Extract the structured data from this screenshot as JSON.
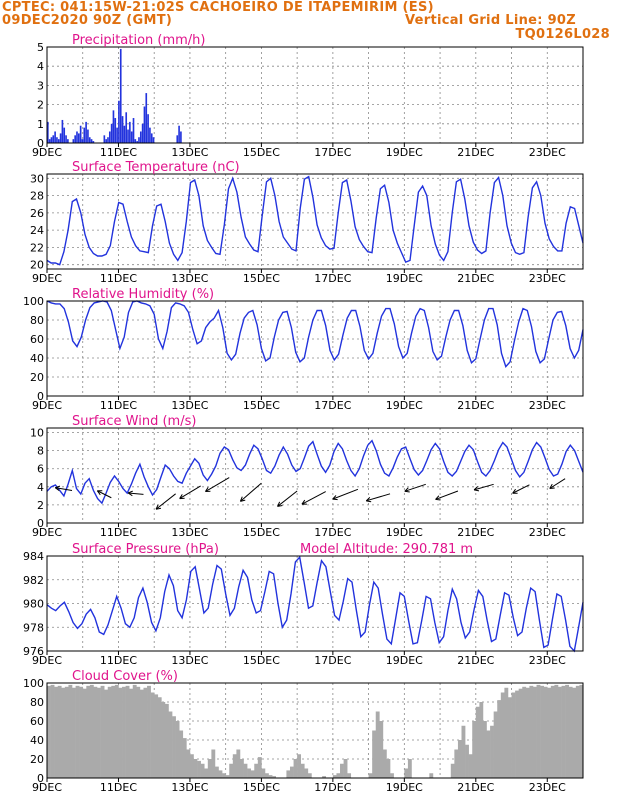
{
  "header": {
    "line1": "CPTEC:   041:15W-21:02S   CACHOEIRO DE ITAPEMIRIM (ES)",
    "line2": "09DEC2020 90Z (GMT)",
    "vgrid": "Vertical Grid Line: 90Z",
    "code": "TQ0126L028"
  },
  "colors": {
    "header": "#e07010",
    "title": "#e0148c",
    "line": "#2233dd",
    "bars": "#2233dd",
    "cloud": "#aaaaaa",
    "grid": "#888888"
  },
  "x_ticks": [
    "9DEC",
    "11DEC",
    "13DEC",
    "15DEC",
    "17DEC",
    "19DEC",
    "21DEC",
    "23DEC"
  ],
  "chart_data": [
    {
      "type": "bar",
      "title": "Precipitation (mm/h)",
      "ylim": [
        0,
        5
      ],
      "yticks": [
        "0",
        "1",
        "2",
        "3",
        "4",
        "5"
      ],
      "grid": true,
      "series": [
        {
          "values": [
            1.1,
            0.2,
            0.3,
            0.4,
            0.6,
            0.3,
            0.2,
            0.5,
            1.2,
            0.8,
            0.4,
            0.2,
            0,
            0,
            0.2,
            0.4,
            0.6,
            0.5,
            0.9,
            0.2,
            0.8,
            1.1,
            0.7,
            0.3,
            0.2,
            0.1,
            0,
            0,
            0,
            0,
            0,
            0.4,
            0.2,
            0.3,
            0.6,
            1.0,
            1.7,
            1.3,
            0.8,
            2.2,
            4.9,
            1.4,
            0.9,
            1.6,
            0.7,
            1.1,
            0.6,
            1.3,
            0.2,
            0.1,
            0.3,
            0.6,
            1.0,
            1.9,
            2.6,
            1.5,
            0.8,
            0.5,
            0.3,
            0,
            0,
            0,
            0,
            0,
            0,
            0,
            0,
            0,
            0,
            0,
            0,
            0.4,
            0.9,
            0.6,
            0,
            0,
            0,
            0,
            0,
            0,
            0,
            0,
            0,
            0,
            0,
            0,
            0,
            0,
            0,
            0,
            0,
            0,
            0,
            0,
            0,
            0,
            0,
            0,
            0,
            0,
            0,
            0,
            0,
            0,
            0,
            0,
            0,
            0,
            0,
            0,
            0,
            0,
            0,
            0,
            0,
            0,
            0,
            0,
            0,
            0,
            0,
            0,
            0,
            0,
            0,
            0,
            0,
            0,
            0,
            0,
            0,
            0,
            0,
            0,
            0,
            0,
            0,
            0,
            0,
            0,
            0,
            0,
            0,
            0,
            0,
            0,
            0,
            0,
            0,
            0,
            0,
            0,
            0,
            0,
            0,
            0,
            0,
            0,
            0,
            0,
            0,
            0,
            0,
            0,
            0,
            0,
            0,
            0,
            0,
            0,
            0,
            0,
            0,
            0,
            0,
            0,
            0,
            0,
            0,
            0,
            0,
            0,
            0,
            0,
            0,
            0,
            0,
            0,
            0,
            0,
            0,
            0,
            0,
            0,
            0,
            0,
            0,
            0,
            0,
            0,
            0,
            0,
            0,
            0,
            0,
            0,
            0,
            0,
            0,
            0,
            0,
            0,
            0,
            0,
            0,
            0,
            0,
            0,
            0,
            0,
            0,
            0,
            0,
            0,
            0,
            0,
            0,
            0,
            0,
            0,
            0,
            0,
            0,
            0,
            0,
            0,
            0,
            0,
            0,
            0,
            0,
            0,
            0,
            0,
            0,
            0,
            0,
            0,
            0,
            0,
            0,
            0,
            0,
            0,
            0,
            0,
            0,
            0,
            0,
            0,
            0,
            0,
            0,
            0,
            0,
            0,
            0,
            0,
            0,
            0,
            0,
            0,
            0,
            0,
            0,
            0,
            0,
            0,
            0,
            0,
            0,
            0,
            0,
            0,
            0,
            0,
            0,
            0,
            0,
            0,
            0,
            0,
            0,
            0
          ]
        }
      ]
    },
    {
      "type": "line",
      "title": "Surface Temperature (nC)",
      "ylim": [
        19.5,
        30.5
      ],
      "yticks": [
        "20",
        "22",
        "24",
        "26",
        "28",
        "30"
      ],
      "grid": true,
      "series": [
        {
          "values": [
            20.5,
            20.2,
            20.2,
            20.0,
            21.5,
            24,
            27.3,
            27.6,
            26,
            23.5,
            22,
            21.3,
            21,
            21,
            21.2,
            22.2,
            25,
            27.2,
            27,
            25,
            23.2,
            22.2,
            21.6,
            21.5,
            21.4,
            24.5,
            26.8,
            27,
            25,
            22.5,
            21.2,
            20.5,
            21.4,
            25,
            29.5,
            29.8,
            28,
            24.5,
            22.8,
            22,
            21.3,
            21.2,
            24.6,
            28.8,
            30,
            28.4,
            25.5,
            23.2,
            22.4,
            21.7,
            21.5,
            25.7,
            29.6,
            30,
            28,
            25,
            23.2,
            22.5,
            21.8,
            21.6,
            26.5,
            29.9,
            30.2,
            27.8,
            24.6,
            23.1,
            22.2,
            21.8,
            21.9,
            26,
            29.5,
            29.8,
            27.4,
            24.4,
            22.9,
            22.1,
            21.5,
            21.4,
            25.4,
            28.8,
            29.2,
            27.2,
            24,
            22.5,
            21.4,
            20.3,
            20.5,
            24.5,
            28.4,
            29.1,
            28,
            24.5,
            22.4,
            21.1,
            20.5,
            21.5,
            26,
            29.6,
            29.9,
            27.6,
            24.5,
            22.6,
            21.7,
            21.3,
            21.6,
            26,
            29.5,
            30.1,
            28,
            24.5,
            22.5,
            21.4,
            21.2,
            21.4,
            25.5,
            28.9,
            29.6,
            28,
            24.8,
            23,
            22.1,
            21.6,
            21.6,
            24.8,
            26.7,
            26.5,
            24.5,
            22.5
          ]
        }
      ]
    },
    {
      "type": "line",
      "title": "Relative Humidity (%)",
      "ylim": [
        0,
        100
      ],
      "yticks": [
        "0",
        "20",
        "40",
        "60",
        "80",
        "100"
      ],
      "grid": true,
      "series": [
        {
          "values": [
            100,
            98,
            97,
            97,
            92,
            78,
            58,
            52,
            62,
            80,
            93,
            98,
            99,
            100,
            99,
            90,
            70,
            50,
            62,
            88,
            99,
            100,
            98,
            97,
            95,
            86,
            60,
            50,
            68,
            93,
            98,
            97,
            95,
            88,
            70,
            55,
            58,
            72,
            78,
            82,
            90,
            72,
            45,
            38,
            44,
            66,
            82,
            88,
            90,
            75,
            50,
            37,
            40,
            62,
            80,
            88,
            89,
            72,
            46,
            36,
            40,
            62,
            80,
            90,
            90,
            74,
            48,
            38,
            44,
            64,
            82,
            90,
            90,
            73,
            48,
            39,
            45,
            66,
            84,
            92,
            92,
            76,
            52,
            40,
            45,
            66,
            84,
            92,
            90,
            72,
            47,
            38,
            42,
            62,
            80,
            90,
            90,
            74,
            48,
            35,
            39,
            60,
            80,
            92,
            92,
            75,
            45,
            31,
            36,
            58,
            78,
            92,
            90,
            73,
            47,
            35,
            39,
            60,
            80,
            88,
            89,
            74,
            50,
            40,
            48,
            70
          ]
        }
      ]
    },
    {
      "type": "line",
      "title": "Surface Wind (m/s)",
      "ylim": [
        0,
        10.5
      ],
      "yticks": [
        "0",
        "2",
        "4",
        "6",
        "8",
        "10"
      ],
      "grid": true,
      "series": [
        {
          "values": [
            3.5,
            4.0,
            4.2,
            3.6,
            3.0,
            4.3,
            5.8,
            3.8,
            3.2,
            4.4,
            4.9,
            3.6,
            2.7,
            2.2,
            3.3,
            4.5,
            5.2,
            4.6,
            3.8,
            3.3,
            4.3,
            5.5,
            6.5,
            5.1,
            4.0,
            3.1,
            3.7,
            5.1,
            6.4,
            6.0,
            5.2,
            4.6,
            4.4,
            5.5,
            6.3,
            7.1,
            6.6,
            5.3,
            4.7,
            5.4,
            6.3,
            7.7,
            8.4,
            8.1,
            7.0,
            6.1,
            5.8,
            6.4,
            7.6,
            8.6,
            8.2,
            7.1,
            5.8,
            5.5,
            6.3,
            7.5,
            8.4,
            7.6,
            6.4,
            5.7,
            6.0,
            7.2,
            8.5,
            9.0,
            7.6,
            6.3,
            5.6,
            6.4,
            7.9,
            8.8,
            8.2,
            6.9,
            5.8,
            5.2,
            6.0,
            7.4,
            8.6,
            9.1,
            8.0,
            6.5,
            5.5,
            5.2,
            6.1,
            7.3,
            8.2,
            8.4,
            7.1,
            5.9,
            5.3,
            5.8,
            6.9,
            8.1,
            8.8,
            8.2,
            6.8,
            5.6,
            5.2,
            5.7,
            6.8,
            7.9,
            8.6,
            8.1,
            6.8,
            5.6,
            5.2,
            5.8,
            6.9,
            8.1,
            8.9,
            8.4,
            7.1,
            5.8,
            5.1,
            5.6,
            6.8,
            8.1,
            8.9,
            8.4,
            7.2,
            5.9,
            5.2,
            5.4,
            6.5,
            7.9,
            8.6,
            8.0,
            6.8,
            5.6
          ]
        }
      ],
      "wind_vectors": [
        {
          "day": 0.7,
          "u": -0.6,
          "v": 0.1
        },
        {
          "day": 1.8,
          "u": -0.5,
          "v": 0.25
        },
        {
          "day": 2.7,
          "u": -0.55,
          "v": 0.05
        },
        {
          "day": 3.6,
          "u": -0.7,
          "v": -0.55
        },
        {
          "day": 4.3,
          "u": -0.75,
          "v": -0.45
        },
        {
          "day": 5.1,
          "u": -0.85,
          "v": -0.5
        },
        {
          "day": 6.0,
          "u": -0.75,
          "v": -0.65
        },
        {
          "day": 7.0,
          "u": -0.7,
          "v": -0.55
        },
        {
          "day": 7.8,
          "u": -0.85,
          "v": -0.45
        },
        {
          "day": 8.7,
          "u": -0.9,
          "v": -0.35
        },
        {
          "day": 9.6,
          "u": -0.85,
          "v": -0.25
        },
        {
          "day": 10.6,
          "u": -0.75,
          "v": -0.25
        },
        {
          "day": 11.5,
          "u": -0.8,
          "v": -0.3
        },
        {
          "day": 12.5,
          "u": -0.7,
          "v": -0.2
        },
        {
          "day": 13.5,
          "u": -0.6,
          "v": -0.3
        },
        {
          "day": 14.5,
          "u": -0.55,
          "v": -0.35
        }
      ]
    },
    {
      "type": "line",
      "title": "Surface Pressure (hPa)",
      "annotation": "Model Altitude: 290.781  m",
      "ylim": [
        976,
        984
      ],
      "yticks": [
        "976",
        "978",
        "980",
        "982",
        "984"
      ],
      "grid": true,
      "series": [
        {
          "values": [
            979.9,
            979.6,
            979.4,
            979.8,
            980.1,
            979.3,
            978.4,
            977.9,
            978.3,
            979.1,
            979.5,
            978.8,
            977.6,
            977.4,
            978.2,
            979.4,
            980.6,
            979.6,
            978.3,
            978.0,
            978.8,
            980.5,
            981.3,
            980.1,
            978.4,
            977.7,
            978.8,
            981.0,
            982.4,
            981.5,
            979.4,
            978.8,
            980.3,
            982.7,
            983.1,
            981.2,
            979.2,
            979.6,
            981.6,
            983.2,
            982.9,
            980.8,
            979.0,
            979.6,
            981.4,
            982.8,
            982.2,
            980.3,
            979.2,
            979.4,
            981.0,
            982.7,
            982.5,
            980.0,
            978.0,
            978.6,
            980.8,
            983.5,
            983.9,
            981.8,
            979.6,
            979.8,
            981.8,
            983.6,
            983.1,
            981.0,
            979.0,
            978.6,
            980.2,
            982.1,
            981.8,
            979.4,
            977.2,
            977.6,
            979.9,
            981.8,
            981.3,
            979.1,
            977.0,
            976.6,
            978.7,
            980.9,
            980.6,
            978.5,
            976.6,
            976.7,
            978.6,
            980.6,
            980.4,
            978.4,
            976.7,
            977.2,
            979.4,
            981.2,
            980.4,
            978.4,
            977.1,
            977.6,
            979.5,
            981.1,
            980.6,
            978.6,
            976.8,
            977.0,
            979.0,
            980.9,
            980.7,
            978.8,
            977.3,
            977.6,
            979.6,
            981.3,
            981.0,
            978.6,
            976.3,
            976.5,
            978.7,
            980.8,
            980.6,
            978.6,
            976.4,
            975.9,
            978.0,
            980.1
          ]
        }
      ]
    },
    {
      "type": "area",
      "title": "Cloud Cover (%)",
      "ylim": [
        0,
        100
      ],
      "yticks": [
        "0",
        "20",
        "40",
        "60",
        "80",
        "100"
      ],
      "grid": true,
      "series": [
        {
          "values": [
            97,
            98,
            96,
            97,
            95,
            96,
            98,
            95,
            97,
            96,
            94,
            97,
            98,
            96,
            95,
            97,
            93,
            96,
            97,
            98,
            95,
            96,
            97,
            94,
            98,
            96,
            93,
            95,
            97,
            90,
            88,
            85,
            80,
            78,
            70,
            65,
            60,
            50,
            42,
            30,
            25,
            20,
            18,
            15,
            10,
            20,
            30,
            12,
            8,
            5,
            3,
            15,
            25,
            30,
            20,
            15,
            10,
            8,
            15,
            22,
            10,
            5,
            3,
            2,
            0,
            0,
            0,
            8,
            12,
            20,
            25,
            15,
            10,
            5,
            0,
            0,
            0,
            2,
            0,
            0,
            3,
            5,
            15,
            20,
            5,
            0,
            0,
            0,
            0,
            0,
            5,
            50,
            70,
            60,
            30,
            20,
            5,
            0,
            0,
            0,
            10,
            20,
            0,
            0,
            0,
            0,
            0,
            5,
            0,
            0,
            0,
            0,
            0,
            15,
            30,
            40,
            55,
            35,
            25,
            60,
            75,
            80,
            60,
            50,
            55,
            70,
            82,
            90,
            95,
            85,
            90,
            92,
            94,
            96,
            95,
            97,
            96,
            98,
            97,
            96,
            95,
            97,
            98,
            96,
            97,
            98,
            96,
            95,
            97,
            98
          ]
        }
      ]
    }
  ]
}
